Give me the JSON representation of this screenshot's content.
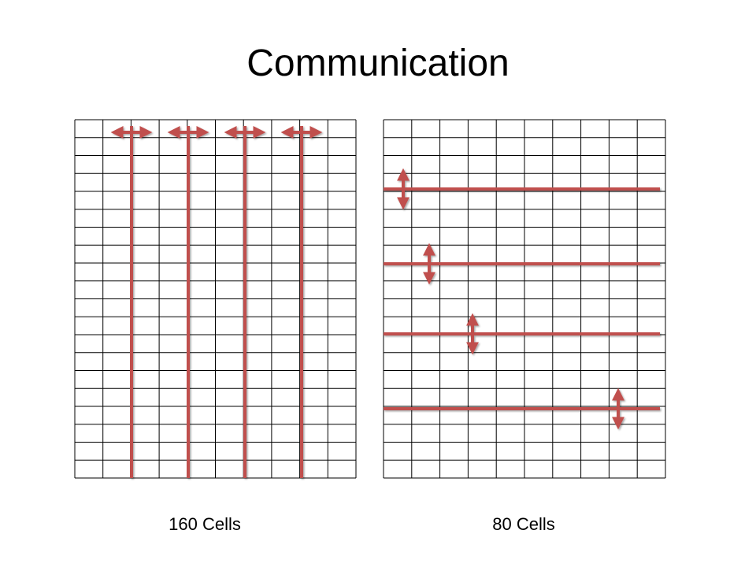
{
  "title": "Communication",
  "panels": [
    {
      "label": "160 Cells"
    },
    {
      "label": "80 Cells"
    }
  ]
}
